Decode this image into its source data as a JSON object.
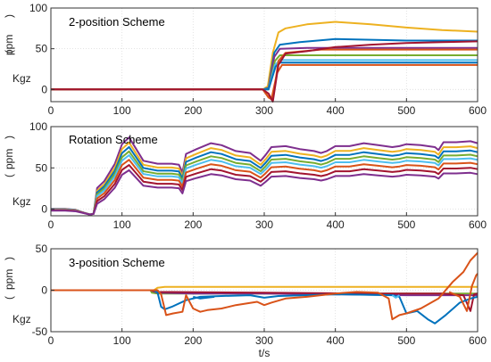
{
  "chart_data": [
    {
      "type": "line",
      "title": "2-position Scheme",
      "ylabel_parts": [
        "Kgz",
        "(",
        "ppm",
        ")"
      ],
      "xlim": [
        0,
        600
      ],
      "ylim": [
        -15,
        100
      ],
      "xticks": [
        0,
        100,
        200,
        300,
        400,
        500,
        600
      ],
      "yticks": [
        0,
        50,
        100
      ],
      "grid": true,
      "series": [
        {
          "color": "#edb120",
          "points": [
            [
              0,
              0
            ],
            [
              298,
              0
            ],
            [
              305,
              4
            ],
            [
              312,
              45
            ],
            [
              320,
              70
            ],
            [
              330,
              75
            ],
            [
              360,
              80
            ],
            [
              400,
              83
            ],
            [
              450,
              80
            ],
            [
              500,
              76
            ],
            [
              550,
              73
            ],
            [
              600,
              71
            ]
          ]
        },
        {
          "color": "#0072bd",
          "points": [
            [
              0,
              0
            ],
            [
              298,
              0
            ],
            [
              306,
              2
            ],
            [
              314,
              45
            ],
            [
              322,
              55
            ],
            [
              350,
              58
            ],
            [
              400,
              62
            ],
            [
              450,
              61
            ],
            [
              500,
              60
            ],
            [
              550,
              60
            ],
            [
              600,
              60
            ]
          ]
        },
        {
          "color": "#7e2f8e",
          "points": [
            [
              0,
              0
            ],
            [
              298,
              0
            ],
            [
              306,
              1
            ],
            [
              314,
              40
            ],
            [
              322,
              50
            ],
            [
              360,
              51
            ],
            [
              600,
              51
            ]
          ]
        },
        {
          "color": "#77ac30",
          "points": [
            [
              0,
              0
            ],
            [
              298,
              0
            ],
            [
              306,
              0
            ],
            [
              315,
              35
            ],
            [
              322,
              42
            ],
            [
              360,
              42
            ],
            [
              600,
              42
            ]
          ]
        },
        {
          "color": "#4dbeee",
          "points": [
            [
              0,
              0
            ],
            [
              298,
              0
            ],
            [
              306,
              0
            ],
            [
              315,
              30
            ],
            [
              322,
              36
            ],
            [
              600,
              36
            ]
          ]
        },
        {
          "color": "#0072bd",
          "points": [
            [
              0,
              0
            ],
            [
              298,
              0
            ],
            [
              306,
              0
            ],
            [
              316,
              28
            ],
            [
              322,
              33
            ],
            [
              600,
              33
            ]
          ]
        },
        {
          "color": "#d95319",
          "points": [
            [
              0,
              0
            ],
            [
              298,
              0
            ],
            [
              305,
              -8
            ],
            [
              310,
              -12
            ],
            [
              318,
              20
            ],
            [
              325,
              30
            ],
            [
              600,
              30
            ]
          ]
        },
        {
          "color": "#d95319",
          "points": [
            [
              0,
              0
            ],
            [
              298,
              0
            ],
            [
              306,
              -10
            ],
            [
              312,
              -13
            ],
            [
              320,
              35
            ],
            [
              330,
              45
            ],
            [
              380,
              49
            ],
            [
              450,
              49
            ],
            [
              600,
              49
            ]
          ]
        },
        {
          "color": "#a2142f",
          "points": [
            [
              0,
              0
            ],
            [
              298,
              0
            ],
            [
              306,
              -5
            ],
            [
              312,
              -15
            ],
            [
              320,
              30
            ],
            [
              330,
              44
            ],
            [
              360,
              47
            ],
            [
              400,
              52
            ],
            [
              450,
              55
            ],
            [
              500,
              57
            ],
            [
              550,
              58
            ],
            [
              600,
              59
            ]
          ]
        }
      ]
    },
    {
      "type": "line",
      "title": "Rotation Scheme",
      "ylabel_parts": [
        "Kgz",
        "(",
        "ppm",
        ")"
      ],
      "xlim": [
        0,
        600
      ],
      "ylim": [
        -8,
        100
      ],
      "xticks": [
        0,
        100,
        200,
        300,
        400,
        500,
        600
      ],
      "yticks": [
        0,
        50,
        100
      ],
      "grid": true,
      "base": [
        [
          0,
          0
        ],
        [
          20,
          0
        ],
        [
          35,
          -1
        ],
        [
          55,
          -6
        ],
        [
          60,
          -5
        ],
        [
          65,
          20
        ],
        [
          75,
          27
        ],
        [
          90,
          45
        ],
        [
          100,
          65
        ],
        [
          110,
          72
        ],
        [
          120,
          60
        ],
        [
          130,
          48
        ],
        [
          150,
          45
        ],
        [
          170,
          45
        ],
        [
          180,
          44
        ],
        [
          185,
          36
        ],
        [
          190,
          55
        ],
        [
          205,
          60
        ],
        [
          225,
          66
        ],
        [
          240,
          64
        ],
        [
          260,
          58
        ],
        [
          280,
          56
        ],
        [
          295,
          48
        ],
        [
          302,
          54
        ],
        [
          310,
          62
        ],
        [
          330,
          63
        ],
        [
          350,
          60
        ],
        [
          370,
          58
        ],
        [
          380,
          56
        ],
        [
          388,
          58
        ],
        [
          400,
          63
        ],
        [
          420,
          63
        ],
        [
          440,
          66
        ],
        [
          460,
          64
        ],
        [
          480,
          62
        ],
        [
          490,
          63
        ],
        [
          500,
          65
        ],
        [
          520,
          64
        ],
        [
          540,
          62
        ],
        [
          545,
          59
        ],
        [
          552,
          67
        ],
        [
          570,
          67
        ],
        [
          590,
          68
        ],
        [
          600,
          66
        ]
      ],
      "series": [
        {
          "color": "#7e2f8e",
          "scale": 1.18,
          "offset": 2
        },
        {
          "color": "#edb120",
          "scale": 1.12,
          "offset": 0
        },
        {
          "color": "#0072bd",
          "scale": 1.06,
          "offset": -1
        },
        {
          "color": "#77ac30",
          "scale": 1.0,
          "offset": -2
        },
        {
          "color": "#4dbeee",
          "scale": 0.95,
          "offset": -3
        },
        {
          "color": "#d95319",
          "scale": 0.9,
          "offset": -5
        },
        {
          "color": "#a2142f",
          "scale": 0.84,
          "offset": -7
        },
        {
          "color": "#7e2f8e",
          "scale": 0.78,
          "offset": -9
        }
      ]
    },
    {
      "type": "line",
      "title": "3-position Scheme",
      "ylabel_parts": [
        "Kgz",
        "(",
        "ppm",
        ")"
      ],
      "xlabel": "t/s",
      "xlim": [
        0,
        600
      ],
      "ylim": [
        -50,
        50
      ],
      "xticks": [
        0,
        100,
        200,
        300,
        400,
        500,
        600
      ],
      "yticks": [
        -50,
        0,
        50
      ],
      "grid": true,
      "series": [
        {
          "color": "#edb120",
          "points": [
            [
              0,
              0
            ],
            [
              140,
              0
            ],
            [
              145,
              0
            ],
            [
              150,
              3
            ],
            [
              160,
              4
            ],
            [
              600,
              4
            ]
          ]
        },
        {
          "color": "#77ac30",
          "points": [
            [
              0,
              0
            ],
            [
              140,
              0
            ],
            [
              142,
              -3
            ],
            [
              150,
              -4
            ],
            [
              600,
              -4
            ]
          ]
        },
        {
          "color": "#7e2f8e",
          "points": [
            [
              0,
              0
            ],
            [
              140,
              0
            ],
            [
              150,
              -3
            ],
            [
              200,
              -4
            ],
            [
              300,
              -4
            ],
            [
              400,
              -5
            ],
            [
              500,
              -6
            ],
            [
              600,
              -6
            ]
          ]
        },
        {
          "color": "#a2142f",
          "points": [
            [
              0,
              0
            ],
            [
              140,
              0
            ],
            [
              150,
              -2
            ],
            [
              300,
              -3
            ],
            [
              450,
              -4
            ],
            [
              550,
              -4
            ],
            [
              580,
              -6
            ],
            [
              590,
              -25
            ],
            [
              595,
              -5
            ],
            [
              600,
              -4
            ]
          ]
        },
        {
          "color": "#0072bd",
          "points": [
            [
              0,
              0
            ],
            [
              145,
              0
            ],
            [
              150,
              -3
            ],
            [
              155,
              -20
            ],
            [
              160,
              -23
            ],
            [
              170,
              -20
            ],
            [
              190,
              -12
            ],
            [
              210,
              -8
            ],
            [
              240,
              -7
            ],
            [
              280,
              -6
            ],
            [
              300,
              -9
            ],
            [
              320,
              -7
            ],
            [
              400,
              -5
            ],
            [
              480,
              -6
            ],
            [
              490,
              -8
            ],
            [
              500,
              -28
            ],
            [
              515,
              -25
            ],
            [
              530,
              -35
            ],
            [
              540,
              -40
            ],
            [
              555,
              -30
            ],
            [
              575,
              -15
            ],
            [
              590,
              -10
            ],
            [
              600,
              -8
            ]
          ]
        },
        {
          "color": "#0072bd",
          "points": [
            [
              200,
              -8
            ],
            [
              210,
              -10
            ],
            [
              230,
              -8
            ]
          ]
        },
        {
          "color": "#4dbeee",
          "points": [
            [
              480,
              -6
            ],
            [
              485,
              -9
            ],
            [
              490,
              -6
            ]
          ]
        },
        {
          "color": "#d95319",
          "points": [
            [
              0,
              0
            ],
            [
              150,
              0
            ],
            [
              155,
              -5
            ],
            [
              162,
              -30
            ],
            [
              172,
              -28
            ],
            [
              185,
              -26
            ],
            [
              190,
              -6
            ],
            [
              200,
              -22
            ],
            [
              210,
              -26
            ],
            [
              220,
              -24
            ],
            [
              240,
              -22
            ],
            [
              260,
              -18
            ],
            [
              290,
              -14
            ],
            [
              300,
              -18
            ],
            [
              310,
              -15
            ],
            [
              330,
              -10
            ],
            [
              360,
              -8
            ],
            [
              400,
              -4
            ],
            [
              430,
              -2
            ],
            [
              460,
              -3
            ],
            [
              475,
              -10
            ],
            [
              480,
              -35
            ],
            [
              490,
              -30
            ],
            [
              500,
              -28
            ],
            [
              520,
              -22
            ],
            [
              545,
              -10
            ],
            [
              565,
              10
            ],
            [
              580,
              22
            ],
            [
              590,
              36
            ],
            [
              600,
              45
            ]
          ]
        },
        {
          "color": "#d95319",
          "points": [
            [
              560,
              -2
            ],
            [
              575,
              -8
            ],
            [
              585,
              -25
            ],
            [
              592,
              5
            ],
            [
              598,
              18
            ],
            [
              600,
              20
            ]
          ]
        }
      ]
    }
  ]
}
